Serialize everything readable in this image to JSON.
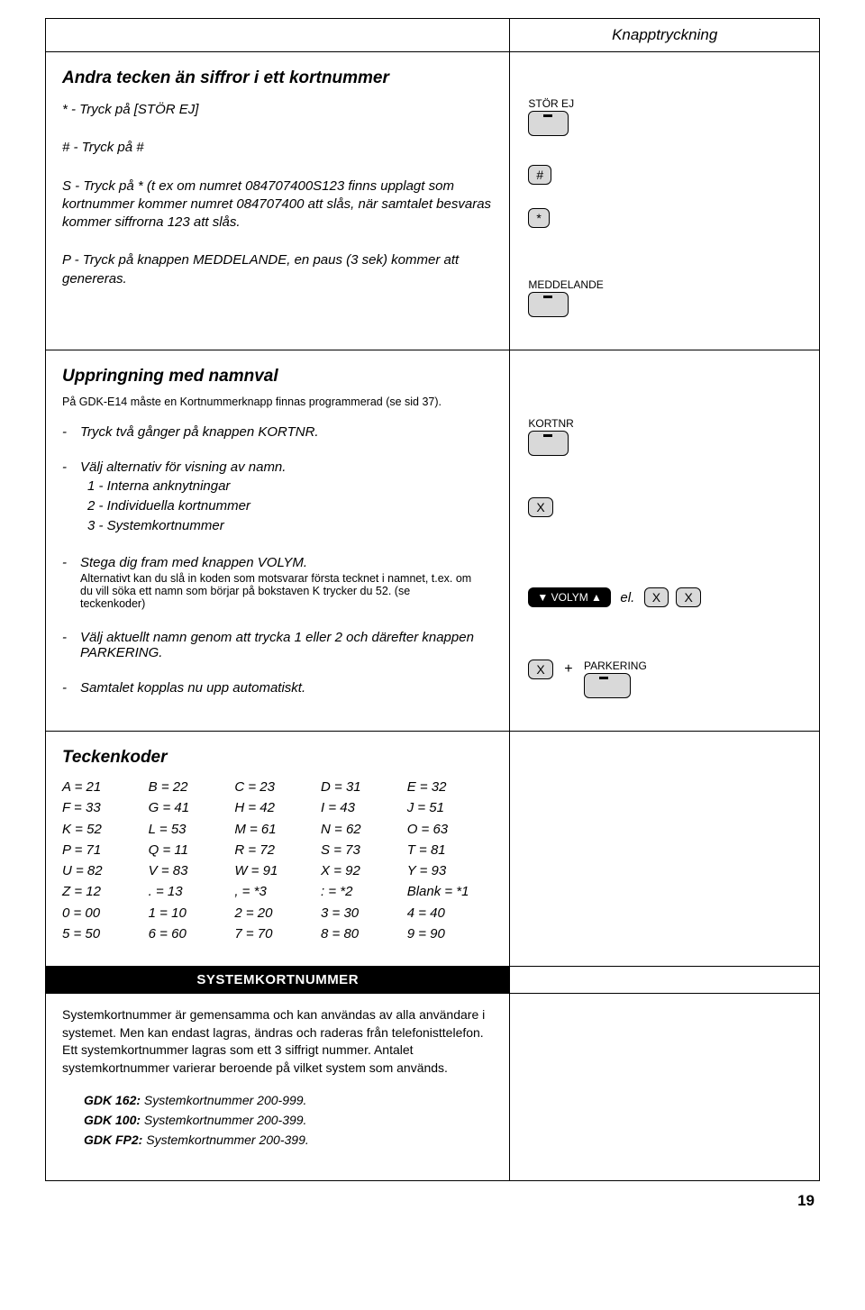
{
  "header": {
    "right": "Knapptryckning"
  },
  "section1": {
    "title": "Andra tecken än siffror i ett kortnummer",
    "star": "* - Tryck på [STÖR EJ]",
    "hash": "# - Tryck på #",
    "s_text": "S - Tryck på * (t ex om numret 084707400S123 finns upplagt som kortnummer kommer numret 084707400 att slås, när samtalet besvaras kommer siffrorna 123 att slås.",
    "p_text": "P - Tryck på knappen MEDDELANDE, en paus (3 sek) kommer att genereras.",
    "keys": {
      "stor_ej": "STÖR EJ",
      "hash": "#",
      "star": "*",
      "meddelande": "MEDDELANDE"
    }
  },
  "section2": {
    "title": "Uppringning med namnval",
    "subtitle": "På GDK-E14 måste en Kortnummerknapp finnas programmerad (se sid 37).",
    "step1": "Tryck två gånger på knappen KORTNR.",
    "step2_head": "Välj alternativ för visning av namn.",
    "step2_opts": [
      "1 - Interna anknytningar",
      "2 - Individuella kortnummer",
      "3 - Systemkortnummer"
    ],
    "step3_head": "Stega dig fram med knappen VOLYM.",
    "step3_sub": "Alternativt kan du slå in koden som motsvarar första tecknet i namnet, t.ex. om du vill söka ett namn som börjar på bokstaven K trycker du 52. (se teckenkoder)",
    "step4": "Välj aktuellt namn genom att trycka 1 eller 2 och därefter knappen PARKERING.",
    "step5": "Samtalet kopplas nu upp automatiskt.",
    "keys": {
      "kortnr": "KORTNR",
      "x": "X",
      "volym": "▼ VOLYM ▲",
      "el": "el.",
      "plus": "+",
      "parkering": "PARKERING"
    }
  },
  "section3": {
    "title": "Teckenkoder",
    "cols": [
      [
        "A = 21",
        "F = 33",
        "K = 52",
        "P = 71",
        "U = 82",
        "Z = 12",
        "0 = 00",
        "5 = 50"
      ],
      [
        "B = 22",
        "G = 41",
        "L = 53",
        "Q = 11",
        "V = 83",
        ". = 13",
        "1 = 10",
        "6 = 60"
      ],
      [
        "C = 23",
        "H = 42",
        "M = 61",
        "R = 72",
        "W = 91",
        ", = *3",
        "2 = 20",
        "7 = 70"
      ],
      [
        "D = 31",
        "I = 43",
        "N = 62",
        "S = 73",
        "X = 92",
        ": = *2",
        "3 = 30",
        "8 = 80"
      ],
      [
        "E = 32",
        "J = 51",
        "O = 63",
        "T = 81",
        "Y = 93",
        "Blank = *1",
        "4 = 40",
        "9 = 90"
      ]
    ]
  },
  "blackbar": "SYSTEMKORTNUMMER",
  "section4": {
    "body": "Systemkortnummer är gemensamma och kan användas av alla användare i systemet. Men kan endast lagras, ändras och raderas från telefonisttelefon. Ett systemkortnummer lagras som ett 3 siffrigt nummer. Antalet systemkortnummer varierar beroende på vilket system som används.",
    "rows": [
      {
        "b": "GDK 162:",
        "r": "Systemkortnummer 200-999."
      },
      {
        "b": "GDK 100:",
        "r": "Systemkortnummer 200-399."
      },
      {
        "b": "GDK FP2:",
        "r": "Systemkortnummer 200-399."
      }
    ]
  },
  "pagenum": "19"
}
